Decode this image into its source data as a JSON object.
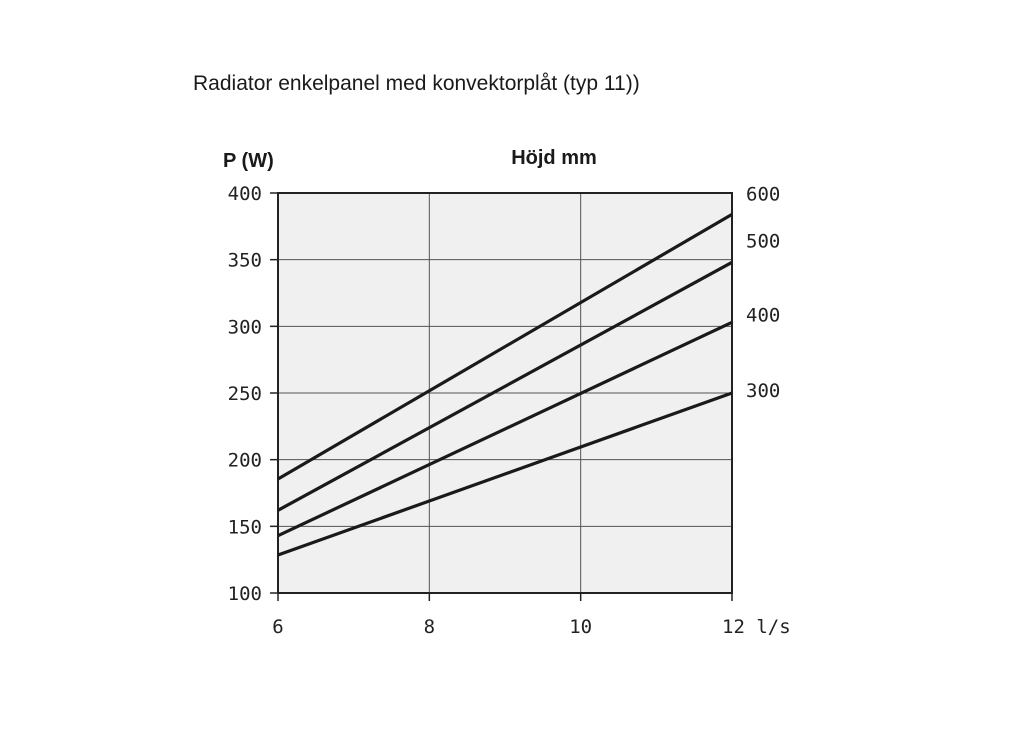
{
  "chart_data": {
    "type": "line",
    "title": "Radiator enkelpanel med konvektorplåt (typ 11))",
    "y_label": "P (W)",
    "legend_title": "Höjd mm",
    "x": [
      6,
      12
    ],
    "series": [
      {
        "name": "600",
        "color": "#1a1a1a",
        "values": [
          185.5,
          384
        ]
      },
      {
        "name": "500",
        "color": "#1a1a1a",
        "values": [
          162,
          348
        ]
      },
      {
        "name": "400",
        "color": "#1a1a1a",
        "values": [
          143,
          303
        ]
      },
      {
        "name": "300",
        "color": "#1a1a1a",
        "values": [
          128.5,
          250
        ]
      }
    ],
    "xlim": [
      6,
      12
    ],
    "xticks": [
      6,
      8,
      10,
      {
        "value": 12,
        "label": "12 l/s"
      }
    ],
    "ylim": [
      100,
      400
    ],
    "yticks": [
      100,
      150,
      200,
      250,
      300,
      350,
      400
    ],
    "grid": true
  }
}
